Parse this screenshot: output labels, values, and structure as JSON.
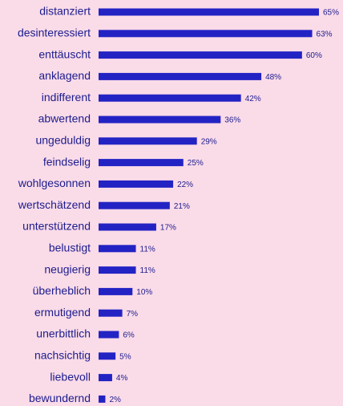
{
  "chart_data": {
    "type": "bar",
    "orientation": "horizontal",
    "categories": [
      "distanziert",
      "desinteressiert",
      "enttäuscht",
      "anklagend",
      "indifferent",
      "abwertend",
      "ungeduldig",
      "feindselig",
      "wohlgesonnen",
      "wertschätzend",
      "unterstützend",
      "belustigt",
      "neugierig",
      "überheblich",
      "ermutigend",
      "unerbittlich",
      "nachsichtig",
      "liebevoll",
      "bewundernd"
    ],
    "values": [
      65,
      63,
      60,
      48,
      42,
      36,
      29,
      25,
      22,
      21,
      17,
      11,
      11,
      10,
      7,
      6,
      5,
      4,
      2
    ],
    "value_labels": [
      "65%",
      "63%",
      "60%",
      "48%",
      "42%",
      "36%",
      "29%",
      "25%",
      "22%",
      "21%",
      "17%",
      "11%",
      "11%",
      "10%",
      "7%",
      "6%",
      "5%",
      "4%",
      "2%"
    ],
    "color": "#2323c4"
  }
}
